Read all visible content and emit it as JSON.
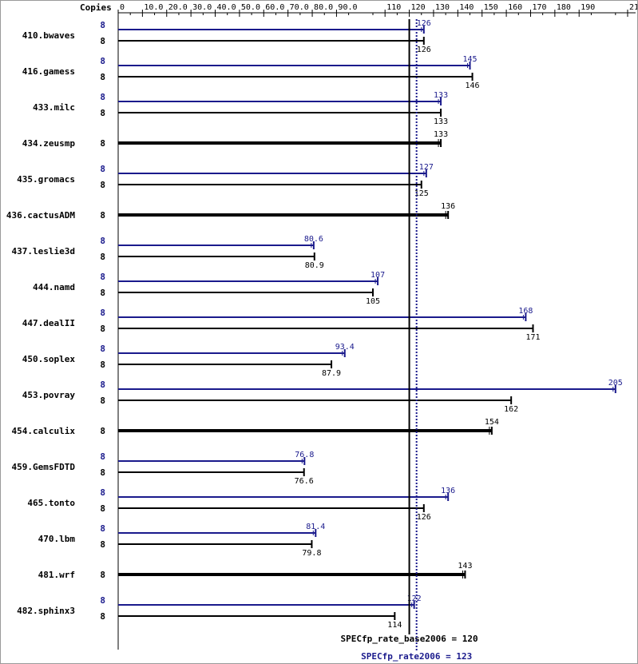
{
  "colors": {
    "base": "#000000",
    "peak": "#1a1a8c",
    "frame": "#9a9a9a"
  },
  "chart_data": {
    "type": "bar",
    "orientation": "horizontal",
    "header": "Copies",
    "xlim": [
      0,
      210
    ],
    "ticks": [
      {
        "v": 0,
        "label": "0"
      },
      {
        "v": 10,
        "label": "10.0"
      },
      {
        "v": 20,
        "label": "20.0"
      },
      {
        "v": 30,
        "label": "30.0"
      },
      {
        "v": 40,
        "label": "40.0"
      },
      {
        "v": 50,
        "label": "50.0"
      },
      {
        "v": 60,
        "label": "60.0"
      },
      {
        "v": 70,
        "label": "70.0"
      },
      {
        "v": 80,
        "label": "80.0"
      },
      {
        "v": 90,
        "label": "90.0"
      },
      {
        "v": 110,
        "label": "110"
      },
      {
        "v": 120,
        "label": "120"
      },
      {
        "v": 130,
        "label": "130"
      },
      {
        "v": 140,
        "label": "140"
      },
      {
        "v": 150,
        "label": "150"
      },
      {
        "v": 160,
        "label": "160"
      },
      {
        "v": 170,
        "label": "170"
      },
      {
        "v": 180,
        "label": "180"
      },
      {
        "v": 190,
        "label": "190"
      },
      {
        "v": 210,
        "label": "210"
      }
    ],
    "benchmarks": [
      {
        "name": "410.bwaves",
        "copies": "8",
        "base": 126,
        "base_label": "126",
        "peak": 126,
        "peak_label": "126"
      },
      {
        "name": "416.gamess",
        "copies": "8",
        "base": 146,
        "base_label": "146",
        "peak": 145,
        "peak_label": "145"
      },
      {
        "name": "433.milc",
        "copies": "8",
        "base": 133,
        "base_label": "133",
        "peak": 133,
        "peak_label": "133"
      },
      {
        "name": "434.zeusmp",
        "copies": "8",
        "base": 133,
        "base_label": "133",
        "peak": null,
        "peak_label": null
      },
      {
        "name": "435.gromacs",
        "copies": "8",
        "base": 125,
        "base_label": "125",
        "peak": 127,
        "peak_label": "127"
      },
      {
        "name": "436.cactusADM",
        "copies": "8",
        "base": 136,
        "base_label": "136",
        "peak": null,
        "peak_label": null
      },
      {
        "name": "437.leslie3d",
        "copies": "8",
        "base": 80.9,
        "base_label": "80.9",
        "peak": 80.6,
        "peak_label": "80.6"
      },
      {
        "name": "444.namd",
        "copies": "8",
        "base": 105,
        "base_label": "105",
        "peak": 107,
        "peak_label": "107"
      },
      {
        "name": "447.dealII",
        "copies": "8",
        "base": 171,
        "base_label": "171",
        "peak": 168,
        "peak_label": "168"
      },
      {
        "name": "450.soplex",
        "copies": "8",
        "base": 87.9,
        "base_label": "87.9",
        "peak": 93.4,
        "peak_label": "93.4"
      },
      {
        "name": "453.povray",
        "copies": "8",
        "base": 162,
        "base_label": "162",
        "peak": 205,
        "peak_label": "205"
      },
      {
        "name": "454.calculix",
        "copies": "8",
        "base": 154,
        "base_label": "154",
        "peak": null,
        "peak_label": null
      },
      {
        "name": "459.GemsFDTD",
        "copies": "8",
        "base": 76.6,
        "base_label": "76.6",
        "peak": 76.8,
        "peak_label": "76.8"
      },
      {
        "name": "465.tonto",
        "copies": "8",
        "base": 126,
        "base_label": "126",
        "peak": 136,
        "peak_label": "136"
      },
      {
        "name": "470.lbm",
        "copies": "8",
        "base": 79.8,
        "base_label": "79.8",
        "peak": 81.4,
        "peak_label": "81.4"
      },
      {
        "name": "481.wrf",
        "copies": "8",
        "base": 143,
        "base_label": "143",
        "peak": null,
        "peak_label": null
      },
      {
        "name": "482.sphinx3",
        "copies": "8",
        "base": 114,
        "base_label": "114",
        "peak": 122,
        "peak_label": "122"
      }
    ],
    "reference_lines": [
      {
        "label": "SPECfp_rate_base2006 = 120",
        "value": 120,
        "style": "solid",
        "series": "base"
      },
      {
        "label": "SPECfp_rate2006 = 123",
        "value": 123,
        "style": "dotted",
        "series": "peak"
      }
    ]
  }
}
